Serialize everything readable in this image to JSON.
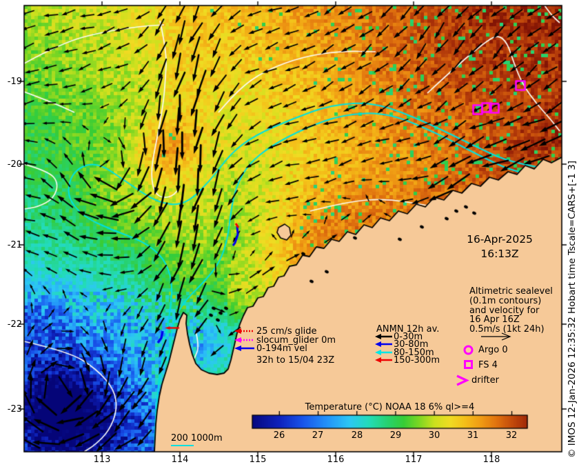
{
  "figure": {
    "timestamp": {
      "date": "16-Apr-2025",
      "time": "16:13Z"
    },
    "annotation": {
      "lines": [
        "Altimetric sealevel",
        "(0.1m contours)",
        "and velocity for",
        "16 Apr 16Z",
        "0.5m/s (1kt 24h)"
      ]
    },
    "glider_legend": {
      "rows": [
        {
          "label": "25 cm/s glide",
          "color": "#ee0000",
          "dashed": true
        },
        {
          "label": "slocum_glider 0m",
          "color": "#ff00ff",
          "dashed": true
        },
        {
          "label": "0-194m vel",
          "color": "#0000ee",
          "dashed": false
        }
      ],
      "footnote": "32h to 15/04 23Z"
    },
    "anmn_legend": {
      "title": "ANMN 12h av.",
      "rows": [
        {
          "label": "0-30m",
          "color": "#000000"
        },
        {
          "label": "30-80m",
          "color": "#0000ee"
        },
        {
          "label": "80-150m",
          "color": "#00e5e5"
        },
        {
          "label": "150-300m",
          "color": "#ee0000"
        }
      ]
    },
    "platform_legend": {
      "marker_color": "#ff00ff",
      "items": [
        {
          "label": "Argo 0",
          "marker": "circle"
        },
        {
          "label": "FS 4",
          "marker": "square"
        },
        {
          "label": "drifter",
          "marker": "chevron"
        }
      ]
    },
    "colorbar": {
      "title": "Temperature (°C) NOAA 18 6% ql>=4",
      "tick_labels": [
        "26",
        "27",
        "28",
        "29",
        "30",
        "31",
        "32"
      ],
      "range_min": 25.3,
      "range_max": 32.4
    },
    "scalebar": {
      "label": "200 1000m",
      "line_color": "#00e0e0"
    },
    "axes": {
      "x_tick_labels": [
        "113",
        "114",
        "115",
        "116",
        "117",
        "118"
      ],
      "y_tick_labels": [
        "-19",
        "-20",
        "-21",
        "-22",
        "-23"
      ]
    },
    "copyright": "© IMOS 12-Jan-2026 12:35:32 Hobart time Tscale=CARS+[-1 3]",
    "map": {
      "land_color": "#f6c998",
      "contour_colors": {
        "sealevel": "#fbfbf5",
        "bathymetry": "#00e0e0"
      },
      "arrow_color": "#000000",
      "marker_color": "#ff00ff",
      "mooring_squares": [
        [
          755,
          124
        ],
        [
          693,
          159
        ],
        [
          706,
          156
        ],
        [
          717,
          157
        ]
      ]
    }
  }
}
